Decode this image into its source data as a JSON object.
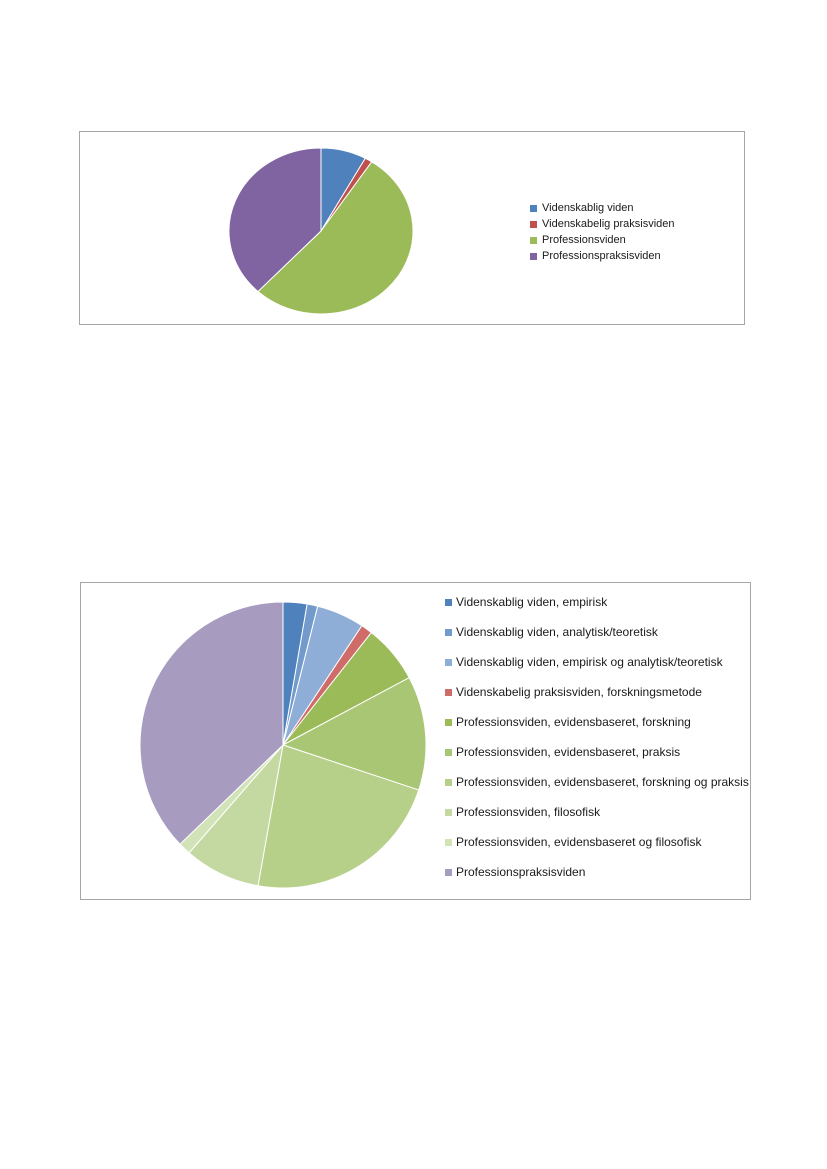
{
  "chart_data": [
    {
      "type": "pie",
      "title": "",
      "legend_position": "right",
      "series": [
        {
          "name": "Videnskablig viden",
          "value": 8,
          "color": "#4f81bd"
        },
        {
          "name": "Videnskabelig praksisviden",
          "value": 1.3,
          "color": "#c0504d"
        },
        {
          "name": "Professionsviden",
          "value": 52.7,
          "color": "#9bbb59"
        },
        {
          "name": "Professionspraksisviden",
          "value": 38,
          "color": "#8064a2"
        }
      ]
    },
    {
      "type": "pie",
      "title": "",
      "legend_position": "right",
      "series": [
        {
          "name": "Videnskablig viden, empirisk",
          "value": 2.7,
          "color": "#4f81bd"
        },
        {
          "name": "Videnskablig viden, analytisk/teoretisk",
          "value": 1.2,
          "color": "#729aca"
        },
        {
          "name": "Videnskablig viden, empirisk og analytisk/teoretisk",
          "value": 5.4,
          "color": "#8eaed8"
        },
        {
          "name": "Videnskabelig praksisviden, forskningsmetode",
          "value": 1.3,
          "color": "#cf6b68"
        },
        {
          "name": "Professionsviden, evidensbaseret, forskning",
          "value": 6.6,
          "color": "#9bbb59"
        },
        {
          "name": "Professionsviden, evidensbaseret, praksis",
          "value": 12.9,
          "color": "#a9c675"
        },
        {
          "name": "Professionsviden, evidensbaseret, forskning og praksis",
          "value": 22.7,
          "color": "#b7d089"
        },
        {
          "name": "Professionsviden, filosofisk",
          "value": 8.6,
          "color": "#c4d9a1"
        },
        {
          "name": "Professionsviden, evidensbaseret og filosofisk",
          "value": 1.4,
          "color": "#d3e3b8"
        },
        {
          "name": "Professionspraksisviden",
          "value": 37.2,
          "color": "#a79cc0"
        }
      ]
    }
  ]
}
